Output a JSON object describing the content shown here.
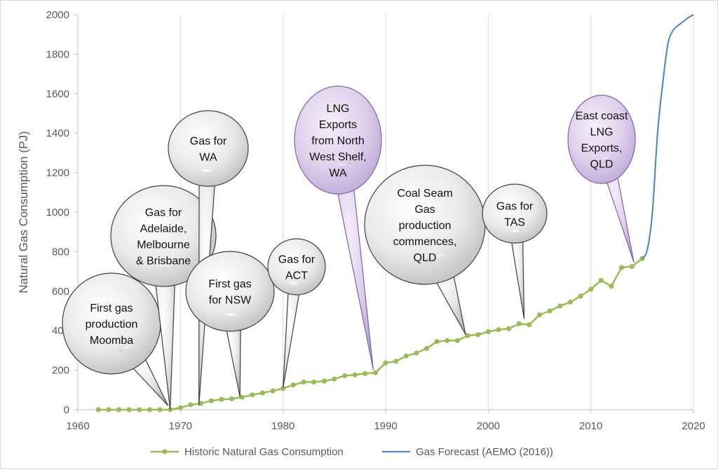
{
  "chart_data": {
    "type": "line",
    "title": "",
    "xlabel": "",
    "ylabel": "Natural Gas Consumption (PJ)",
    "xlim": [
      1960,
      2020
    ],
    "ylim": [
      0,
      2000
    ],
    "x_ticks": [
      "1960",
      "1970",
      "1980",
      "1990",
      "2000",
      "2010",
      "2020"
    ],
    "y_ticks": [
      "0",
      "200",
      "400",
      "600",
      "800",
      "1000",
      "1200",
      "1400",
      "1600",
      "1800",
      "2000"
    ],
    "grid": "vertical",
    "legend_position": "bottom",
    "series": [
      {
        "name": "Historic Natural Gas Consumption",
        "color": "#9bbb59",
        "marker": "circle",
        "x": [
          1962,
          1963,
          1964,
          1965,
          1966,
          1967,
          1968,
          1969,
          1970,
          1971,
          1972,
          1973,
          1974,
          1975,
          1976,
          1977,
          1978,
          1979,
          1980,
          1981,
          1982,
          1983,
          1984,
          1985,
          1986,
          1987,
          1988,
          1989,
          1990,
          1991,
          1992,
          1993,
          1994,
          1995,
          1996,
          1997,
          1998,
          1999,
          2000,
          2001,
          2002,
          2003,
          2004,
          2005,
          2006,
          2007,
          2008,
          2009,
          2010,
          2011,
          2012,
          2013,
          2014,
          2015
        ],
        "y": [
          0,
          0,
          0,
          0,
          0,
          0,
          0,
          0,
          10,
          25,
          32,
          45,
          52,
          55,
          63,
          75,
          85,
          95,
          107,
          125,
          140,
          140,
          145,
          155,
          172,
          176,
          183,
          187,
          237,
          245,
          272,
          287,
          310,
          345,
          350,
          350,
          375,
          380,
          395,
          405,
          410,
          435,
          430,
          480,
          500,
          525,
          545,
          575,
          610,
          655,
          625,
          720,
          725,
          765
        ]
      },
      {
        "name": "Gas Forecast (AEMO (2016))",
        "color": "#4f81bd",
        "marker": "none",
        "x": [
          2015,
          2015.5,
          2016,
          2016.5,
          2017,
          2017.5,
          2018,
          2018.5,
          2019,
          2019.5,
          2020
        ],
        "y": [
          765,
          810,
          1000,
          1400,
          1650,
          1850,
          1920,
          1945,
          1965,
          1985,
          2000
        ]
      }
    ],
    "annotations": [
      {
        "text": "First gas production Moomba",
        "lines": [
          "First gas",
          "production",
          "Moomba"
        ],
        "point": [
          1968.8,
          20
        ],
        "style": "gray"
      },
      {
        "text": "Gas for Adelaide, Melbourne & Brisbane",
        "lines": [
          "Gas for",
          "Adelaide,",
          "Melbourne",
          "& Brisbane"
        ],
        "point": [
          1969,
          0
        ],
        "style": "gray"
      },
      {
        "text": "Gas for WA",
        "lines": [
          "Gas for",
          "WA"
        ],
        "point": [
          1971.8,
          20
        ],
        "style": "gray"
      },
      {
        "text": "First gas for NSW",
        "lines": [
          "First gas",
          "for NSW"
        ],
        "point": [
          1975.8,
          65
        ],
        "style": "gray"
      },
      {
        "text": "Gas for ACT",
        "lines": [
          "Gas for",
          "ACT"
        ],
        "point": [
          1980,
          110
        ],
        "style": "gray"
      },
      {
        "text": "LNG Exports from North West Shelf, WA",
        "lines": [
          "LNG",
          "Exports",
          "from North",
          "West Shelf,",
          "WA"
        ],
        "point": [
          1988.8,
          200
        ],
        "style": "purple"
      },
      {
        "text": "Coal Seam Gas production commences, QLD",
        "lines": [
          "Coal Seam",
          "Gas",
          "production",
          "commences,",
          "QLD"
        ],
        "point": [
          1997.8,
          380
        ],
        "style": "gray"
      },
      {
        "text": "Gas for TAS",
        "lines": [
          "Gas for",
          "TAS"
        ],
        "point": [
          2003.5,
          460
        ],
        "style": "gray"
      },
      {
        "text": "East coast LNG Exports, QLD",
        "lines": [
          "East coast",
          "LNG",
          "Exports,",
          "QLD"
        ],
        "point": [
          2014.2,
          745
        ],
        "style": "purple"
      }
    ]
  }
}
